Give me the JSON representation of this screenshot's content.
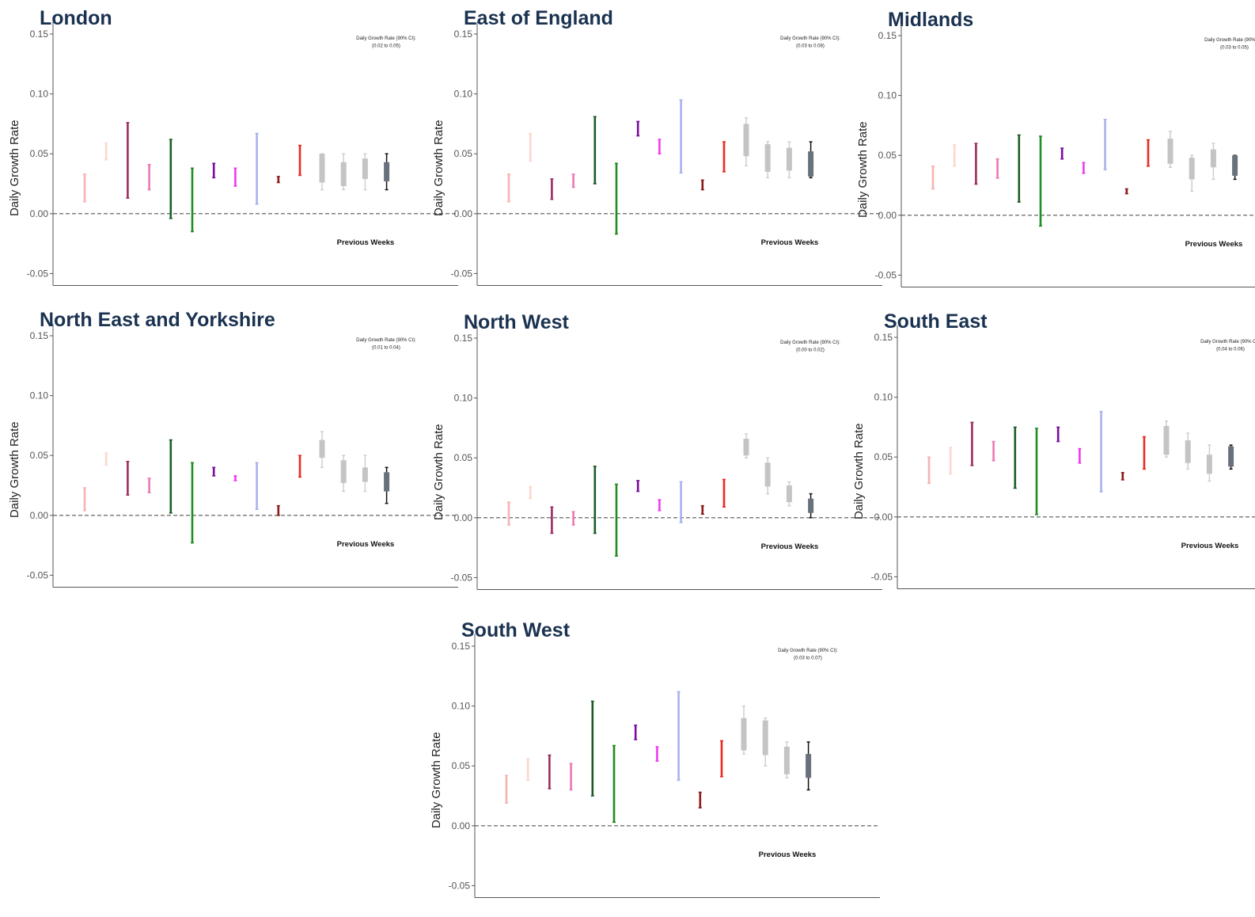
{
  "figure": {
    "ylabel": "Daily Growth Rate",
    "previous_weeks_label": "Previous Weeks",
    "ci_label_prefix": "Daily Growth Rate (90% CI):",
    "y_ticks": [
      0.15,
      0.1,
      0.05,
      0.0,
      -0.05
    ],
    "y_tick_labels": [
      "0.15",
      "0.10",
      "0.05",
      "0.00",
      "-0.05"
    ],
    "ylim": [
      -0.06,
      0.16
    ],
    "grid": false,
    "reference_line": 0.0,
    "series_colors": [
      "#f5b3b3",
      "#fcd7cf",
      "#9c2c5e",
      "#ec78b4",
      "#1c5c24",
      "#228b22",
      "#7b0c9c",
      "#ef3af0",
      "#a8b2ee",
      "#8b1a1a",
      "#ea2a22"
    ],
    "previous_weeks_colors": [
      "#bdbdbd",
      "#bdbdbd",
      "#bdbdbd",
      "#5a6470"
    ],
    "previous_weeks_box_colors": [
      "#c4c4c4",
      "#c4c4c4",
      "#c4c4c4",
      "#69727c"
    ],
    "previous_weeks_whisker_colors": [
      "#cfcfcf",
      "#cfcfcf",
      "#cfcfcf",
      "#111111"
    ]
  },
  "chart_data": [
    {
      "type": "errorbar",
      "title": "London",
      "ci_text": "(0.02 to 0.05)",
      "intervals": [
        [
          0.01,
          0.033
        ],
        [
          0.045,
          0.059
        ],
        [
          0.013,
          0.076
        ],
        [
          0.02,
          0.041
        ],
        [
          -0.004,
          0.062
        ],
        [
          -0.015,
          0.038
        ],
        [
          0.03,
          0.042
        ],
        [
          0.023,
          0.038
        ],
        [
          0.008,
          0.067
        ],
        [
          0.026,
          0.031
        ],
        [
          0.032,
          0.057
        ]
      ],
      "previous_weeks": [
        [
          0.02,
          0.026,
          0.05,
          0.05
        ],
        [
          0.02,
          0.023,
          0.043,
          0.05
        ],
        [
          0.02,
          0.029,
          0.046,
          0.05
        ],
        [
          0.02,
          0.027,
          0.043,
          0.05
        ]
      ]
    },
    {
      "type": "errorbar",
      "title": "East of England",
      "ci_text": "(0.03 to 0.08)",
      "intervals": [
        [
          0.01,
          0.033
        ],
        [
          0.044,
          0.067
        ],
        [
          0.012,
          0.029
        ],
        [
          0.022,
          0.033
        ],
        [
          0.025,
          0.081
        ],
        [
          -0.017,
          0.042
        ],
        [
          0.065,
          0.077
        ],
        [
          0.05,
          0.062
        ],
        [
          0.034,
          0.095
        ],
        [
          0.02,
          0.028
        ],
        [
          0.035,
          0.06
        ]
      ],
      "previous_weeks": [
        [
          0.04,
          0.048,
          0.075,
          0.08
        ],
        [
          0.03,
          0.035,
          0.058,
          0.06
        ],
        [
          0.03,
          0.036,
          0.055,
          0.06
        ],
        [
          0.03,
          0.031,
          0.052,
          0.06
        ]
      ]
    },
    {
      "type": "errorbar",
      "title": "Midlands",
      "ci_text": "(0.03 to 0.05)",
      "intervals": [
        [
          0.022,
          0.041
        ],
        [
          0.041,
          0.059
        ],
        [
          0.026,
          0.06
        ],
        [
          0.031,
          0.047
        ],
        [
          0.011,
          0.067
        ],
        [
          -0.009,
          0.066
        ],
        [
          0.047,
          0.056
        ],
        [
          0.035,
          0.044
        ],
        [
          0.038,
          0.08
        ],
        [
          0.018,
          0.022
        ],
        [
          0.041,
          0.063
        ]
      ],
      "previous_weeks": [
        [
          0.04,
          0.043,
          0.064,
          0.07
        ],
        [
          0.02,
          0.03,
          0.048,
          0.05
        ],
        [
          0.03,
          0.04,
          0.055,
          0.06
        ],
        [
          0.03,
          0.033,
          0.05,
          0.05
        ]
      ]
    },
    {
      "type": "errorbar",
      "title": "North East and Yorkshire",
      "ci_text": "(0.01 to 0.04)",
      "intervals": [
        [
          0.004,
          0.023
        ],
        [
          0.042,
          0.052
        ],
        [
          0.017,
          0.045
        ],
        [
          0.019,
          0.031
        ],
        [
          0.002,
          0.063
        ],
        [
          -0.023,
          0.044
        ],
        [
          0.033,
          0.04
        ],
        [
          0.029,
          0.033
        ],
        [
          0.005,
          0.044
        ],
        [
          0.0,
          0.008
        ],
        [
          0.032,
          0.05
        ]
      ],
      "previous_weeks": [
        [
          0.04,
          0.048,
          0.063,
          0.07
        ],
        [
          0.02,
          0.027,
          0.046,
          0.05
        ],
        [
          0.02,
          0.028,
          0.04,
          0.05
        ],
        [
          0.01,
          0.02,
          0.036,
          0.04
        ]
      ]
    },
    {
      "type": "errorbar",
      "title": "North West",
      "ci_text": "(0.00 to 0.02)",
      "intervals": [
        [
          -0.006,
          0.013
        ],
        [
          0.016,
          0.026
        ],
        [
          -0.013,
          0.009
        ],
        [
          -0.006,
          0.005
        ],
        [
          -0.013,
          0.043
        ],
        [
          -0.032,
          0.028
        ],
        [
          0.022,
          0.031
        ],
        [
          0.006,
          0.015
        ],
        [
          -0.004,
          0.03
        ],
        [
          0.003,
          0.01
        ],
        [
          0.009,
          0.032
        ]
      ],
      "previous_weeks": [
        [
          0.05,
          0.052,
          0.066,
          0.07
        ],
        [
          0.02,
          0.026,
          0.046,
          0.05
        ],
        [
          0.01,
          0.013,
          0.027,
          0.03
        ],
        [
          0.0,
          0.004,
          0.016,
          0.02
        ]
      ]
    },
    {
      "type": "errorbar",
      "title": "South East",
      "ci_text": "(0.04 to 0.06)",
      "intervals": [
        [
          0.028,
          0.05
        ],
        [
          0.036,
          0.058
        ],
        [
          0.043,
          0.079
        ],
        [
          0.047,
          0.063
        ],
        [
          0.024,
          0.075
        ],
        [
          0.002,
          0.074
        ],
        [
          0.063,
          0.075
        ],
        [
          0.045,
          0.057
        ],
        [
          0.021,
          0.088
        ],
        [
          0.031,
          0.037
        ],
        [
          0.04,
          0.067
        ]
      ],
      "previous_weeks": [
        [
          0.05,
          0.052,
          0.076,
          0.08
        ],
        [
          0.04,
          0.045,
          0.064,
          0.07
        ],
        [
          0.03,
          0.036,
          0.052,
          0.06
        ],
        [
          0.04,
          0.042,
          0.059,
          0.06
        ]
      ]
    },
    {
      "type": "errorbar",
      "title": "South West",
      "ci_text": "(0.03 to 0.07)",
      "intervals": [
        [
          0.019,
          0.042
        ],
        [
          0.038,
          0.056
        ],
        [
          0.031,
          0.059
        ],
        [
          0.03,
          0.052
        ],
        [
          0.025,
          0.104
        ],
        [
          0.003,
          0.067
        ],
        [
          0.072,
          0.084
        ],
        [
          0.054,
          0.066
        ],
        [
          0.038,
          0.112
        ],
        [
          0.015,
          0.028
        ],
        [
          0.041,
          0.071
        ]
      ],
      "previous_weeks": [
        [
          0.06,
          0.063,
          0.09,
          0.1
        ],
        [
          0.05,
          0.059,
          0.088,
          0.09
        ],
        [
          0.04,
          0.043,
          0.066,
          0.07
        ],
        [
          0.03,
          0.04,
          0.06,
          0.07
        ]
      ]
    }
  ]
}
